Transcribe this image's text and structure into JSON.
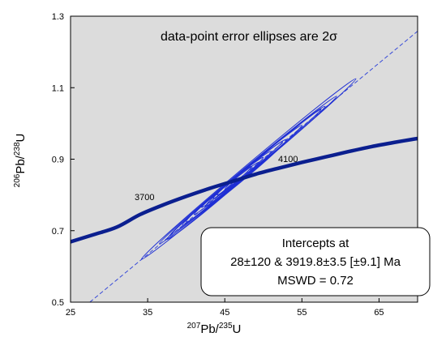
{
  "chart_data": {
    "type": "scatter",
    "title": "",
    "xlim": [
      25,
      70
    ],
    "ylim": [
      0.5,
      1.3
    ],
    "x_ticks": [
      "25",
      "35",
      "45",
      "55",
      "65"
    ],
    "y_ticks": [
      "0.5",
      "0.7",
      "0.9",
      "1.1",
      "1.3"
    ],
    "xlabel": {
      "sup1": "207",
      "base1": "Pb/",
      "sup2": "235",
      "base2": "U"
    },
    "ylabel": {
      "sup1": "206",
      "base1": "Pb/",
      "sup2": "238",
      "base2": "U"
    },
    "annotation": {
      "text": "data-point error ellipses are 2",
      "sigma": "σ"
    },
    "concordia_age_labels": [
      "3700",
      "4100"
    ],
    "concordia_curve": [
      [
        25.0,
        0.669
      ],
      [
        28.0,
        0.689
      ],
      [
        31.0,
        0.71
      ],
      [
        34.0,
        0.745
      ],
      [
        37.0,
        0.772
      ],
      [
        40.0,
        0.796
      ],
      [
        43.0,
        0.818
      ],
      [
        46.0,
        0.838
      ],
      [
        49.0,
        0.858
      ],
      [
        52.0,
        0.875
      ],
      [
        55.0,
        0.891
      ],
      [
        58.0,
        0.906
      ],
      [
        61.0,
        0.921
      ],
      [
        64.0,
        0.935
      ],
      [
        67.0,
        0.947
      ],
      [
        70.0,
        0.958
      ]
    ],
    "discordia_line": [
      [
        27.5,
        0.5
      ],
      [
        70.0,
        1.258
      ]
    ],
    "ellipses": [
      {
        "x1": 34.2,
        "y1": 0.62,
        "x2": 62.0,
        "y2": 1.125,
        "w": 0.012
      },
      {
        "x1": 36.5,
        "y1": 0.663,
        "x2": 59.5,
        "y2": 1.076,
        "w": 0.01
      },
      {
        "x1": 38.0,
        "y1": 0.69,
        "x2": 57.5,
        "y2": 1.04,
        "w": 0.008
      },
      {
        "x1": 39.5,
        "y1": 0.716,
        "x2": 55.0,
        "y2": 0.995,
        "w": 0.009
      },
      {
        "x1": 41.0,
        "y1": 0.745,
        "x2": 52.5,
        "y2": 0.95,
        "w": 0.007
      },
      {
        "x1": 42.5,
        "y1": 0.768,
        "x2": 51.0,
        "y2": 0.922,
        "w": 0.008
      },
      {
        "x1": 43.5,
        "y1": 0.79,
        "x2": 50.0,
        "y2": 0.905,
        "w": 0.006
      },
      {
        "x1": 37.5,
        "y1": 0.676,
        "x2": 49.5,
        "y2": 0.892,
        "w": 0.009
      },
      {
        "x1": 44.0,
        "y1": 0.8,
        "x2": 48.5,
        "y2": 0.88,
        "w": 0.005
      },
      {
        "x1": 40.0,
        "y1": 0.725,
        "x2": 53.0,
        "y2": 0.955,
        "w": 0.011
      },
      {
        "x1": 45.0,
        "y1": 0.815,
        "x2": 58.0,
        "y2": 1.048,
        "w": 0.009
      },
      {
        "x1": 42.0,
        "y1": 0.765,
        "x2": 46.5,
        "y2": 0.846,
        "w": 0.004
      }
    ],
    "info_box": {
      "line1": "Intercepts at",
      "line2": "28±120 & 3919.8±3.5   [±9.1]  Ma",
      "line3": "MSWD = 0.72"
    },
    "colors": {
      "plot_bg": "#dcdcdc",
      "curve": "#0b1f8f",
      "ellipse": "#1f2fd4",
      "discordia": "#3548d8",
      "box_border": "#000000",
      "box_fill": "#ffffff"
    },
    "grid": false
  }
}
